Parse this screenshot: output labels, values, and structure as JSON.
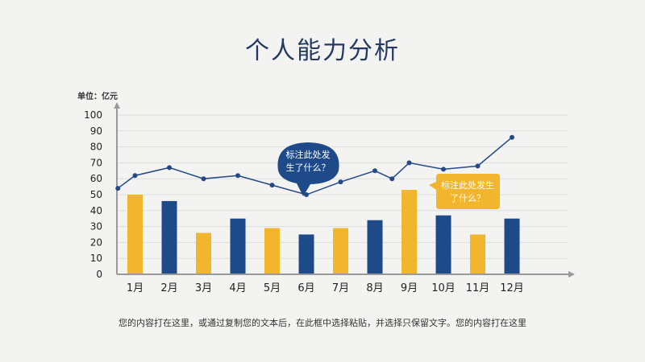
{
  "title": "个人能力分析",
  "unit_label": "单位：亿元",
  "caption": "您的内容打在这里，或通过复制您的文本后，在此框中选择粘贴，并选择只保留文字。您的内容打在这里",
  "colors": {
    "title": "#243a63",
    "bar_yellow": "#f1b52e",
    "bar_blue": "#1f4a8a",
    "line": "#234a85",
    "axis": "#9a9a9a",
    "grid": "#dddddd",
    "bubble_blue": "#1f4a8a",
    "bubble_yellow": "#f1b52e"
  },
  "chart_data": {
    "type": "bar",
    "categories": [
      "1月",
      "2月",
      "3月",
      "4月",
      "5月",
      "6月",
      "7月",
      "8月",
      "9月",
      "10月",
      "11月",
      "12月"
    ],
    "series": [
      {
        "type": "bar",
        "values": [
          50,
          46,
          26,
          35,
          29,
          25,
          29,
          34,
          53,
          37,
          25,
          35
        ],
        "colors": [
          "yellow",
          "blue",
          "yellow",
          "blue",
          "yellow",
          "blue",
          "yellow",
          "blue",
          "yellow",
          "blue",
          "yellow",
          "blue"
        ]
      },
      {
        "type": "line",
        "x": [
          0.5,
          1,
          2,
          3,
          4,
          5,
          6,
          7,
          8,
          8.5,
          9,
          10,
          11,
          12
        ],
        "values": [
          54,
          62,
          67,
          60,
          62,
          56,
          50,
          58,
          65,
          60,
          70,
          66,
          68,
          86
        ]
      }
    ],
    "ylim": [
      0,
      100
    ],
    "yticks": [
      0,
      10,
      20,
      30,
      40,
      50,
      60,
      70,
      80,
      90,
      100
    ],
    "grid": true,
    "annotations": [
      {
        "text_line1": "标注此处发",
        "text_line2": "生了什么？",
        "style": "blue"
      },
      {
        "text_line1": "标注此处发生",
        "text_line2": "了什么？",
        "style": "yellow"
      }
    ]
  }
}
